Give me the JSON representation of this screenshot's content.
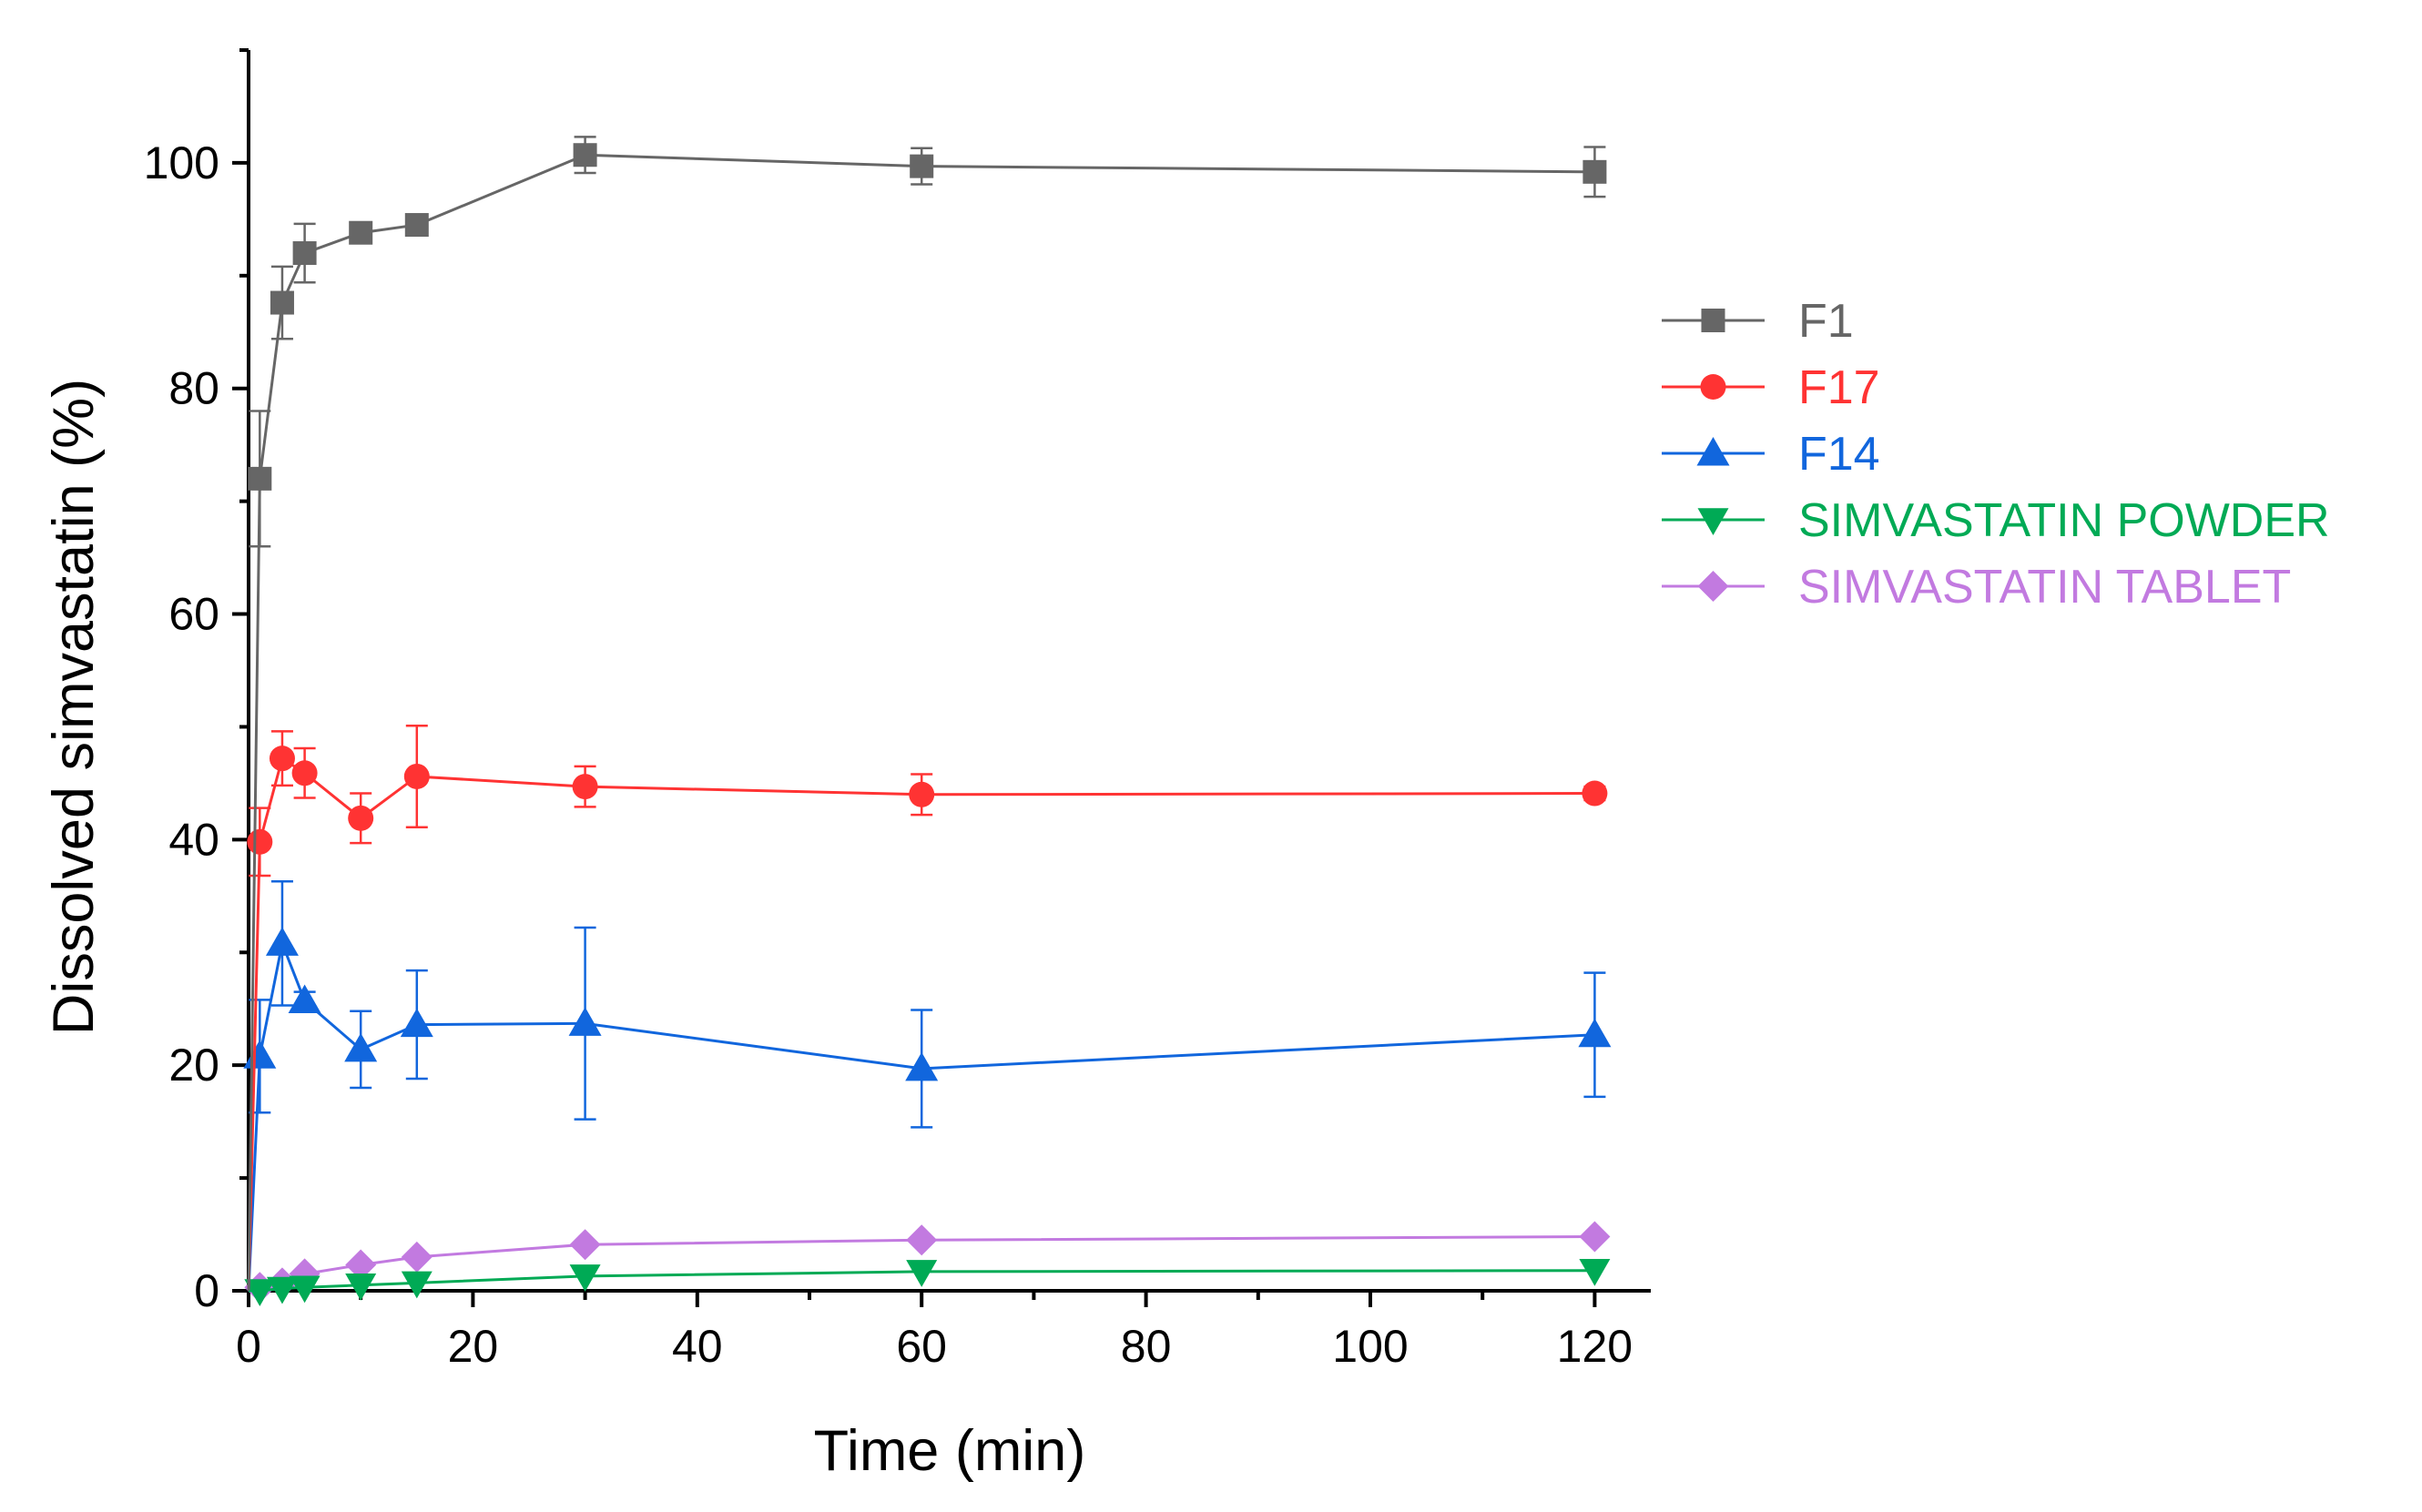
{
  "chart_data": {
    "type": "line",
    "title": "",
    "xlabel": "Time (min)",
    "ylabel": "Dissolved simvastatin (%)",
    "xlim": [
      0,
      125
    ],
    "ylim": [
      0,
      110
    ],
    "xticks": [
      0,
      20,
      40,
      60,
      80,
      100,
      120
    ],
    "yticks": [
      0,
      20,
      40,
      60,
      80,
      100
    ],
    "grid": false,
    "legend_position": "right",
    "x": [
      0,
      1,
      3,
      5,
      10,
      15,
      30,
      60,
      120
    ],
    "series": [
      {
        "name": "F1",
        "color": "#666666",
        "marker": "square",
        "values": [
          0,
          72,
          87.6,
          92,
          93.8,
          94.5,
          100.7,
          99.7,
          99.2
        ],
        "errors": [
          0,
          6,
          3.2,
          2.6,
          0.5,
          0.5,
          1.6,
          1.6,
          2.2
        ]
      },
      {
        "name": "F17",
        "color": "#ff3333",
        "marker": "circle",
        "values": [
          0,
          39.8,
          47.2,
          45.9,
          41.9,
          45.6,
          44.7,
          44,
          44.1
        ],
        "errors": [
          0,
          3,
          2.4,
          2.2,
          2.2,
          4.5,
          1.8,
          1.8,
          0.6
        ]
      },
      {
        "name": "F14",
        "color": "#1166dd",
        "marker": "triangle-up",
        "values": [
          0,
          20.8,
          30.8,
          25.7,
          21.4,
          23.6,
          23.7,
          19.7,
          22.7
        ],
        "errors": [
          0,
          5,
          5.5,
          0.8,
          3.4,
          4.8,
          8.5,
          5.2,
          5.5
        ]
      },
      {
        "name": "SIMVASTATIN POWDER",
        "color": "#00aa55",
        "marker": "triangle-down",
        "values": [
          0,
          0,
          0.2,
          0.3,
          0.5,
          0.7,
          1.3,
          1.7,
          1.8
        ],
        "errors": [
          0,
          0,
          0,
          0,
          0,
          0,
          0,
          0,
          0
        ]
      },
      {
        "name": "SIMVASTATIN TABLET",
        "color": "#c27ae0",
        "marker": "diamond",
        "values": [
          0,
          0.3,
          0.7,
          1.5,
          2.3,
          3,
          4.1,
          4.5,
          4.8
        ],
        "errors": [
          0,
          0,
          0,
          0,
          0,
          0,
          0,
          0,
          0
        ]
      }
    ]
  }
}
